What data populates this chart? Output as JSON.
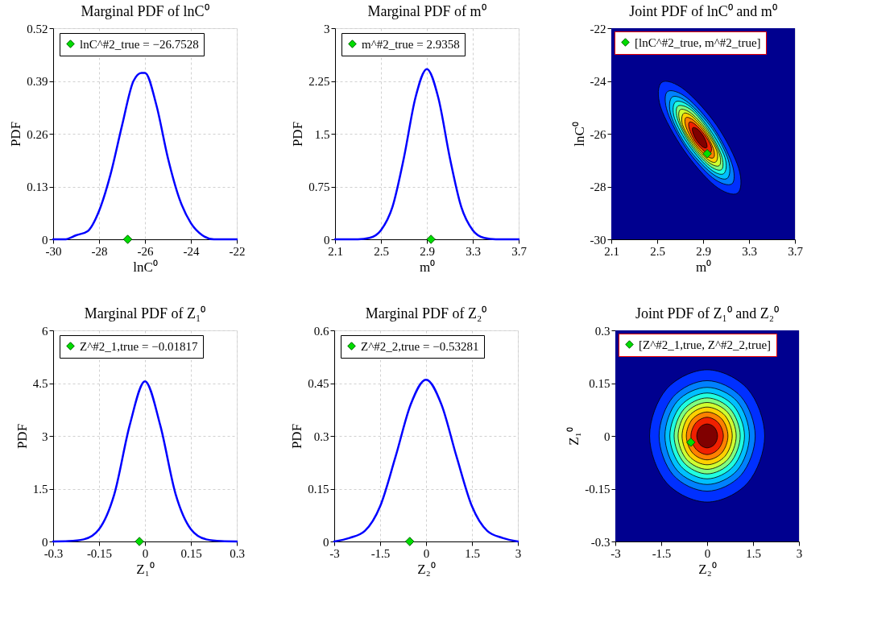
{
  "chart_data": [
    {
      "type": "line",
      "title": "Marginal PDF of lnC⁰",
      "xlabel": "lnC⁰",
      "ylabel": "PDF",
      "xlim": [
        -30,
        -22
      ],
      "xticks": [
        -30,
        -28,
        -26,
        -24,
        -22
      ],
      "ylim": [
        0,
        0.52
      ],
      "yticks": [
        0,
        0.13,
        0.26,
        0.39,
        0.52
      ],
      "grid": true,
      "legend": "top",
      "series": [
        {
          "color": "#0000ff",
          "x": [
            -30,
            -29.5,
            -29,
            -28.5,
            -28,
            -27.5,
            -27,
            -26.5,
            -26.15,
            -26,
            -25.5,
            -25,
            -24.5,
            -24,
            -23.5,
            -23,
            -22.5,
            -22
          ],
          "values": [
            0,
            0,
            0.01,
            0.02,
            0.07,
            0.16,
            0.28,
            0.39,
            0.41,
            0.41,
            0.33,
            0.2,
            0.1,
            0.04,
            0.01,
            0,
            0,
            0
          ]
        },
        {
          "type": "scatter",
          "marker": "diamond",
          "name": "lnC^#2_true = −26.7528",
          "color": "#00dd00",
          "x": [
            -26.7528
          ],
          "values": [
            0
          ]
        }
      ]
    },
    {
      "type": "line",
      "title": "Marginal PDF of m⁰",
      "xlabel": "m⁰",
      "ylabel": "PDF",
      "xlim": [
        2.1,
        3.7
      ],
      "xticks": [
        2.1,
        2.5,
        2.9,
        3.3,
        3.7
      ],
      "ylim": [
        0,
        3
      ],
      "yticks": [
        0,
        0.75,
        1.5,
        2.25,
        3
      ],
      "grid": true,
      "legend": "top",
      "series": [
        {
          "color": "#0000ff",
          "x": [
            2.1,
            2.2,
            2.3,
            2.4,
            2.5,
            2.6,
            2.7,
            2.8,
            2.9,
            3.0,
            3.1,
            3.2,
            3.3,
            3.4,
            3.5,
            3.6,
            3.7
          ],
          "values": [
            0,
            0,
            0,
            0.02,
            0.13,
            0.46,
            1.16,
            2.01,
            2.42,
            2.01,
            1.16,
            0.46,
            0.13,
            0.02,
            0,
            0,
            0
          ]
        },
        {
          "type": "scatter",
          "marker": "diamond",
          "name": "m^#2_true = 2.9358",
          "color": "#00dd00",
          "x": [
            2.9358
          ],
          "values": [
            0
          ]
        }
      ]
    },
    {
      "type": "area",
      "title": "Joint PDF of lnC⁰ and m⁰",
      "xlabel": "m⁰",
      "ylabel": "lnC⁰",
      "xlim": [
        2.1,
        3.7
      ],
      "xticks": [
        2.1,
        2.5,
        2.9,
        3.3,
        3.7
      ],
      "ylim": [
        -30,
        -22
      ],
      "yticks": [
        -30,
        -28,
        -26,
        -24,
        -22
      ],
      "legend": "top left",
      "bands": [
        {
          "axis": "x",
          "from": 2.1,
          "to": 3.7,
          "color": "#00008f"
        }
      ],
      "series": [
        {
          "type": "area",
          "color": "#0030ff",
          "x": [
            3.2,
            3.0,
            2.73,
            2.53,
            2.54,
            2.74,
            3.02,
            3.21
          ],
          "values": [
            -28.25,
            -27.96,
            -26.61,
            -24.99,
            -24.05,
            -24.34,
            -25.69,
            -27.31
          ]
        },
        {
          "type": "area",
          "color": "#0080ff",
          "x": [
            3.15,
            2.98,
            2.75,
            2.59,
            2.59,
            2.76,
            2.99,
            3.15
          ],
          "values": [
            -27.9,
            -27.66,
            -26.53,
            -25.18,
            -24.4,
            -24.64,
            -25.77,
            -27.12
          ]
        },
        {
          "type": "area",
          "color": "#00c0ff",
          "x": [
            3.11,
            2.97,
            2.76,
            2.62,
            2.63,
            2.77,
            2.98,
            3.12
          ],
          "values": [
            -27.69,
            -27.48,
            -26.49,
            -25.3,
            -24.61,
            -24.82,
            -25.81,
            -27.0
          ]
        },
        {
          "type": "area",
          "color": "#20ffe0",
          "x": [
            3.08,
            2.96,
            2.78,
            2.65,
            2.66,
            2.79,
            2.96,
            3.09
          ],
          "values": [
            -27.51,
            -27.33,
            -26.45,
            -25.4,
            -24.79,
            -24.98,
            -25.85,
            -26.9
          ]
        },
        {
          "type": "area",
          "color": "#80ff80",
          "x": [
            3.06,
            2.95,
            2.79,
            2.68,
            2.68,
            2.8,
            2.95,
            3.06
          ],
          "values": [
            -27.36,
            -27.19,
            -26.41,
            -25.49,
            -24.95,
            -25.11,
            -25.89,
            -26.82
          ]
        },
        {
          "type": "area",
          "color": "#d0ff30",
          "x": [
            3.04,
            2.94,
            2.8,
            2.7,
            2.7,
            2.8,
            2.94,
            3.04
          ],
          "values": [
            -27.21,
            -27.06,
            -26.38,
            -25.57,
            -25.09,
            -25.24,
            -25.92,
            -26.74
          ]
        },
        {
          "type": "area",
          "color": "#ffd000",
          "x": [
            3.01,
            2.93,
            2.81,
            2.72,
            2.73,
            2.81,
            2.93,
            3.02
          ],
          "values": [
            -27.07,
            -26.94,
            -26.35,
            -25.65,
            -25.23,
            -25.36,
            -25.95,
            -26.66
          ]
        },
        {
          "type": "area",
          "color": "#ff8000",
          "x": [
            2.99,
            2.92,
            2.82,
            2.75,
            2.75,
            2.82,
            2.92,
            2.99
          ],
          "values": [
            -26.91,
            -26.81,
            -26.32,
            -25.73,
            -25.39,
            -25.5,
            -25.98,
            -26.57
          ]
        },
        {
          "type": "area",
          "color": "#f02000",
          "x": [
            2.96,
            2.91,
            2.83,
            2.78,
            2.78,
            2.83,
            2.91,
            2.97
          ],
          "values": [
            -26.74,
            -26.66,
            -26.28,
            -25.82,
            -25.56,
            -25.64,
            -26.02,
            -26.48
          ]
        },
        {
          "type": "area",
          "color": "#800000",
          "x": [
            2.93,
            2.89,
            2.84,
            2.81,
            2.81,
            2.85,
            2.9,
            2.93
          ],
          "values": [
            -26.53,
            -26.48,
            -26.23,
            -25.94,
            -25.77,
            -25.82,
            -26.07,
            -26.36
          ]
        },
        {
          "type": "scatter",
          "marker": "diamond",
          "name": "[lnC^#2_true, m^#2_true]",
          "color": "#00dd00",
          "x": [
            2.9358
          ],
          "values": [
            -26.7528
          ]
        }
      ]
    },
    {
      "type": "line",
      "title": "Marginal PDF of Z₁⁰",
      "xlabel": "Z₁⁰",
      "ylabel": "PDF",
      "xlim": [
        -0.3,
        0.3
      ],
      "xticks": [
        -0.3,
        -0.15,
        0,
        0.15,
        0.3
      ],
      "ylim": [
        0,
        6
      ],
      "yticks": [
        0,
        1.5,
        3,
        4.5,
        6
      ],
      "grid": true,
      "legend": "top",
      "series": [
        {
          "color": "#0000ff",
          "x": [
            -0.3,
            -0.25,
            -0.2,
            -0.15,
            -0.1,
            -0.05,
            0,
            0.05,
            0.1,
            0.15,
            0.2,
            0.25,
            0.3
          ],
          "values": [
            0,
            0.01,
            0.06,
            0.35,
            1.35,
            3.3,
            4.55,
            3.3,
            1.35,
            0.35,
            0.06,
            0.01,
            0
          ]
        },
        {
          "type": "scatter",
          "marker": "diamond",
          "name": "Z^#2_1,true = −0.01817",
          "color": "#00dd00",
          "x": [
            -0.01817
          ],
          "values": [
            0
          ]
        }
      ]
    },
    {
      "type": "line",
      "title": "Marginal PDF of Z₂⁰",
      "xlabel": "Z₂⁰",
      "ylabel": "PDF",
      "xlim": [
        -3,
        3
      ],
      "xticks": [
        -3,
        -1.5,
        0,
        1.5,
        3
      ],
      "ylim": [
        0,
        0.6
      ],
      "yticks": [
        0,
        0.15,
        0.3,
        0.45,
        0.6
      ],
      "grid": true,
      "legend": "top",
      "series": [
        {
          "color": "#0000ff",
          "x": [
            -3,
            -2.5,
            -2,
            -1.5,
            -1,
            -0.5,
            0,
            0.5,
            1,
            1.5,
            2,
            2.5,
            3
          ],
          "values": [
            0,
            0.01,
            0.03,
            0.1,
            0.24,
            0.39,
            0.46,
            0.39,
            0.24,
            0.1,
            0.03,
            0.01,
            0
          ]
        },
        {
          "type": "scatter",
          "marker": "diamond",
          "name": "Z^#2_2,true = −0.53281",
          "color": "#00dd00",
          "x": [
            -0.53281
          ],
          "values": [
            0
          ]
        }
      ]
    },
    {
      "type": "area",
      "title": "Joint PDF of Z₁⁰ and Z₂⁰",
      "xlabel": "Z₂⁰",
      "ylabel": "Z₁⁰",
      "xlim": [
        -3,
        3
      ],
      "xticks": [
        -3,
        -1.5,
        0,
        1.5,
        3
      ],
      "ylim": [
        -0.3,
        0.3
      ],
      "yticks": [
        -0.3,
        -0.15,
        0,
        0.15,
        0.3
      ],
      "legend": "top left",
      "bands": [
        {
          "axis": "x",
          "from": -3,
          "to": 3,
          "color": "#00008f"
        }
      ],
      "series": [
        {
          "type": "area",
          "color": "#0030ff",
          "x": [
            1.88,
            1.33,
            0,
            -1.33,
            -1.88,
            -1.33,
            0,
            1.33
          ],
          "values": [
            0,
            0.133,
            0.188,
            0.133,
            0,
            -0.133,
            -0.188,
            -0.133
          ]
        },
        {
          "type": "area",
          "color": "#0080ff",
          "x": [
            1.57,
            1.11,
            0,
            -1.11,
            -1.57,
            -1.11,
            0,
            1.11
          ],
          "values": [
            0,
            0.111,
            0.157,
            0.111,
            0,
            -0.111,
            -0.157,
            -0.111
          ]
        },
        {
          "type": "area",
          "color": "#00c0ff",
          "x": [
            1.38,
            0.98,
            0,
            -0.98,
            -1.38,
            -0.98,
            0,
            0.98
          ],
          "values": [
            0,
            0.098,
            0.138,
            0.098,
            0,
            -0.098,
            -0.138,
            -0.098
          ]
        },
        {
          "type": "area",
          "color": "#20ffe0",
          "x": [
            1.22,
            0.86,
            0,
            -0.86,
            -1.22,
            -0.86,
            0,
            0.86
          ],
          "values": [
            0,
            0.086,
            0.122,
            0.086,
            0,
            -0.086,
            -0.122,
            -0.086
          ]
        },
        {
          "type": "area",
          "color": "#80ff80",
          "x": [
            1.08,
            0.76,
            0,
            -0.76,
            -1.08,
            -0.76,
            0,
            0.76
          ],
          "values": [
            0,
            0.076,
            0.108,
            0.076,
            0,
            -0.076,
            -0.108,
            -0.076
          ]
        },
        {
          "type": "area",
          "color": "#d0ff30",
          "x": [
            0.95,
            0.67,
            0,
            -0.67,
            -0.95,
            -0.67,
            0,
            0.67
          ],
          "values": [
            0,
            0.067,
            0.095,
            0.067,
            0,
            -0.067,
            -0.095,
            -0.067
          ]
        },
        {
          "type": "area",
          "color": "#ffd000",
          "x": [
            0.82,
            0.58,
            0,
            -0.58,
            -0.82,
            -0.58,
            0,
            0.58
          ],
          "values": [
            0,
            0.058,
            0.082,
            0.058,
            0,
            -0.058,
            -0.082,
            -0.058
          ]
        },
        {
          "type": "area",
          "color": "#ff8000",
          "x": [
            0.68,
            0.48,
            0,
            -0.48,
            -0.68,
            -0.48,
            0,
            0.48
          ],
          "values": [
            0,
            0.048,
            0.068,
            0.048,
            0,
            -0.048,
            -0.068,
            -0.048
          ]
        },
        {
          "type": "area",
          "color": "#f02000",
          "x": [
            0.53,
            0.37,
            0,
            -0.37,
            -0.53,
            -0.37,
            0,
            0.37
          ],
          "values": [
            0,
            0.037,
            0.053,
            0.037,
            0,
            -0.037,
            -0.053,
            -0.037
          ]
        },
        {
          "type": "area",
          "color": "#800000",
          "x": [
            0.34,
            0.24,
            0,
            -0.24,
            -0.34,
            -0.24,
            0,
            0.24
          ],
          "values": [
            0,
            0.024,
            0.034,
            0.024,
            0,
            -0.024,
            -0.034,
            -0.024
          ]
        },
        {
          "type": "scatter",
          "marker": "diamond",
          "name": "[Z^#2_1,true, Z^#2_2,true]",
          "color": "#00dd00",
          "x": [
            -0.53281
          ],
          "values": [
            -0.01817
          ]
        }
      ]
    }
  ]
}
